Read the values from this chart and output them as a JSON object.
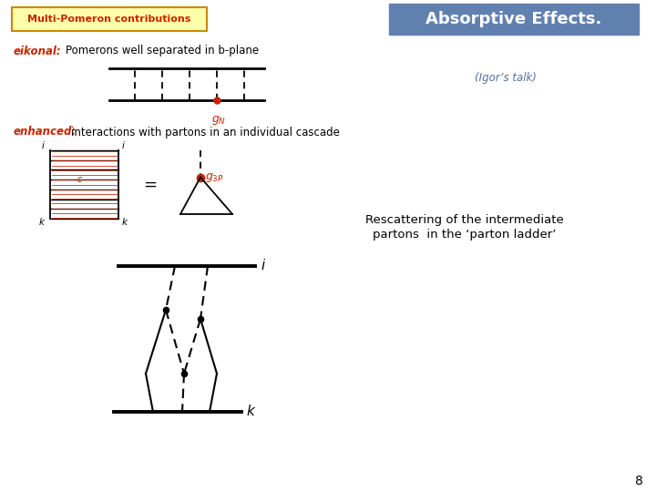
{
  "bg_color": "#ffffff",
  "title": "Absorptive Effects.",
  "title_bg": "#6080b0",
  "title_color": "white",
  "top_left_label": "Multi-Pomeron contributions",
  "top_left_bg": "#ffffaa",
  "top_left_border": "#cc8800",
  "top_left_color": "#cc2200",
  "eikonal_label": "eikonal:",
  "eikonal_color": "#cc2200",
  "eikonal_text": "Pomerons well separated in b-plane",
  "eikonal_text_color": "black",
  "enhanced_label": "enhanced:",
  "enhanced_color": "#cc2200",
  "enhanced_text": "interactions with partons in an individual cascade",
  "enhanced_text_color": "black",
  "igor_text": "(Igor’s talk)",
  "igor_color": "#5070a0",
  "rescatter_text1": "Rescattering of the intermediate",
  "rescatter_text2": "partons  in the ‘parton ladder’",
  "rescatter_color": "black",
  "page_number": "8",
  "dot_color": "#cc2200"
}
